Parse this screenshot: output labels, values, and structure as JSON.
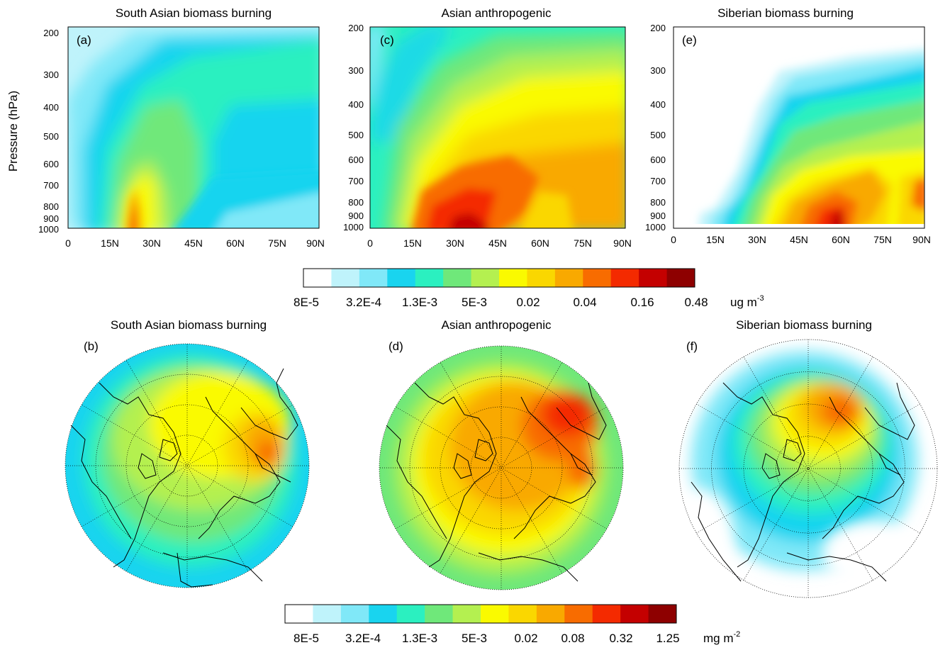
{
  "figure": {
    "colorbar_top": {
      "colors": [
        "#ffffff",
        "#bff3fb",
        "#80e8f8",
        "#19d4ef",
        "#2bf0c0",
        "#6fe87a",
        "#b4f050",
        "#fafa00",
        "#fad700",
        "#f9a900",
        "#f86c00",
        "#f42a00",
        "#c40000",
        "#8e0000"
      ],
      "labels": [
        "8E-5",
        "3.2E-4",
        "1.3E-3",
        "5E-3",
        "0.02",
        "0.04",
        "0.16",
        "0.48"
      ],
      "unit": "ug m",
      "unit_exp": "-3"
    },
    "colorbar_bottom": {
      "colors": [
        "#ffffff",
        "#bff3fb",
        "#80e8f8",
        "#19d4ef",
        "#2bf0c0",
        "#6fe87a",
        "#b4f050",
        "#fafa00",
        "#fad700",
        "#f9a900",
        "#f86c00",
        "#f42a00",
        "#c40000",
        "#8e0000"
      ],
      "labels": [
        "8E-5",
        "3.2E-4",
        "1.3E-3",
        "5E-3",
        "0.02",
        "0.08",
        "0.32",
        "1.25"
      ],
      "unit": "mg m",
      "unit_exp": "-2"
    }
  },
  "chart_data": [
    {
      "id": "a",
      "type": "heatmap",
      "panel_label": "(a)",
      "title": "South Asian biomass burning",
      "xlabel": "",
      "ylabel": "Pressure (hPa)",
      "x_ticks": [
        "0",
        "15N",
        "30N",
        "45N",
        "60N",
        "75N",
        "90N"
      ],
      "y_ticks": [
        "200",
        "300",
        "400",
        "500",
        "600",
        "700",
        "800",
        "900",
        "1000"
      ],
      "xlim": [
        0,
        90
      ],
      "ylim": [
        1000,
        200
      ],
      "y_scale": "log",
      "color_levels": 14
    },
    {
      "id": "c",
      "type": "heatmap",
      "panel_label": "(c)",
      "title": "Asian anthropogenic",
      "xlabel": "",
      "ylabel": "",
      "x_ticks": [
        "0",
        "15N",
        "30N",
        "45N",
        "60N",
        "75N",
        "90N"
      ],
      "y_ticks": [
        "200",
        "300",
        "400",
        "500",
        "600",
        "700",
        "800",
        "900",
        "1000"
      ],
      "xlim": [
        0,
        90
      ],
      "ylim": [
        1000,
        200
      ],
      "y_scale": "log",
      "color_levels": 14
    },
    {
      "id": "e",
      "type": "heatmap",
      "panel_label": "(e)",
      "title": "Siberian biomass burning",
      "xlabel": "",
      "ylabel": "",
      "x_ticks": [
        "0",
        "15N",
        "30N",
        "45N",
        "60N",
        "75N",
        "90N"
      ],
      "y_ticks": [
        "200",
        "300",
        "400",
        "500",
        "600",
        "700",
        "800",
        "900",
        "1000"
      ],
      "xlim": [
        0,
        90
      ],
      "ylim": [
        1000,
        200
      ],
      "y_scale": "log",
      "color_levels": 14
    },
    {
      "id": "b",
      "type": "heatmap",
      "projection": "north polar stereographic",
      "panel_label": "(b)",
      "title": "South Asian biomass burning"
    },
    {
      "id": "d",
      "type": "heatmap",
      "projection": "north polar stereographic",
      "panel_label": "(d)",
      "title": "Asian anthropogenic"
    },
    {
      "id": "f",
      "type": "heatmap",
      "projection": "north polar stereographic",
      "panel_label": "(f)",
      "title": "Siberian biomass burning"
    }
  ]
}
